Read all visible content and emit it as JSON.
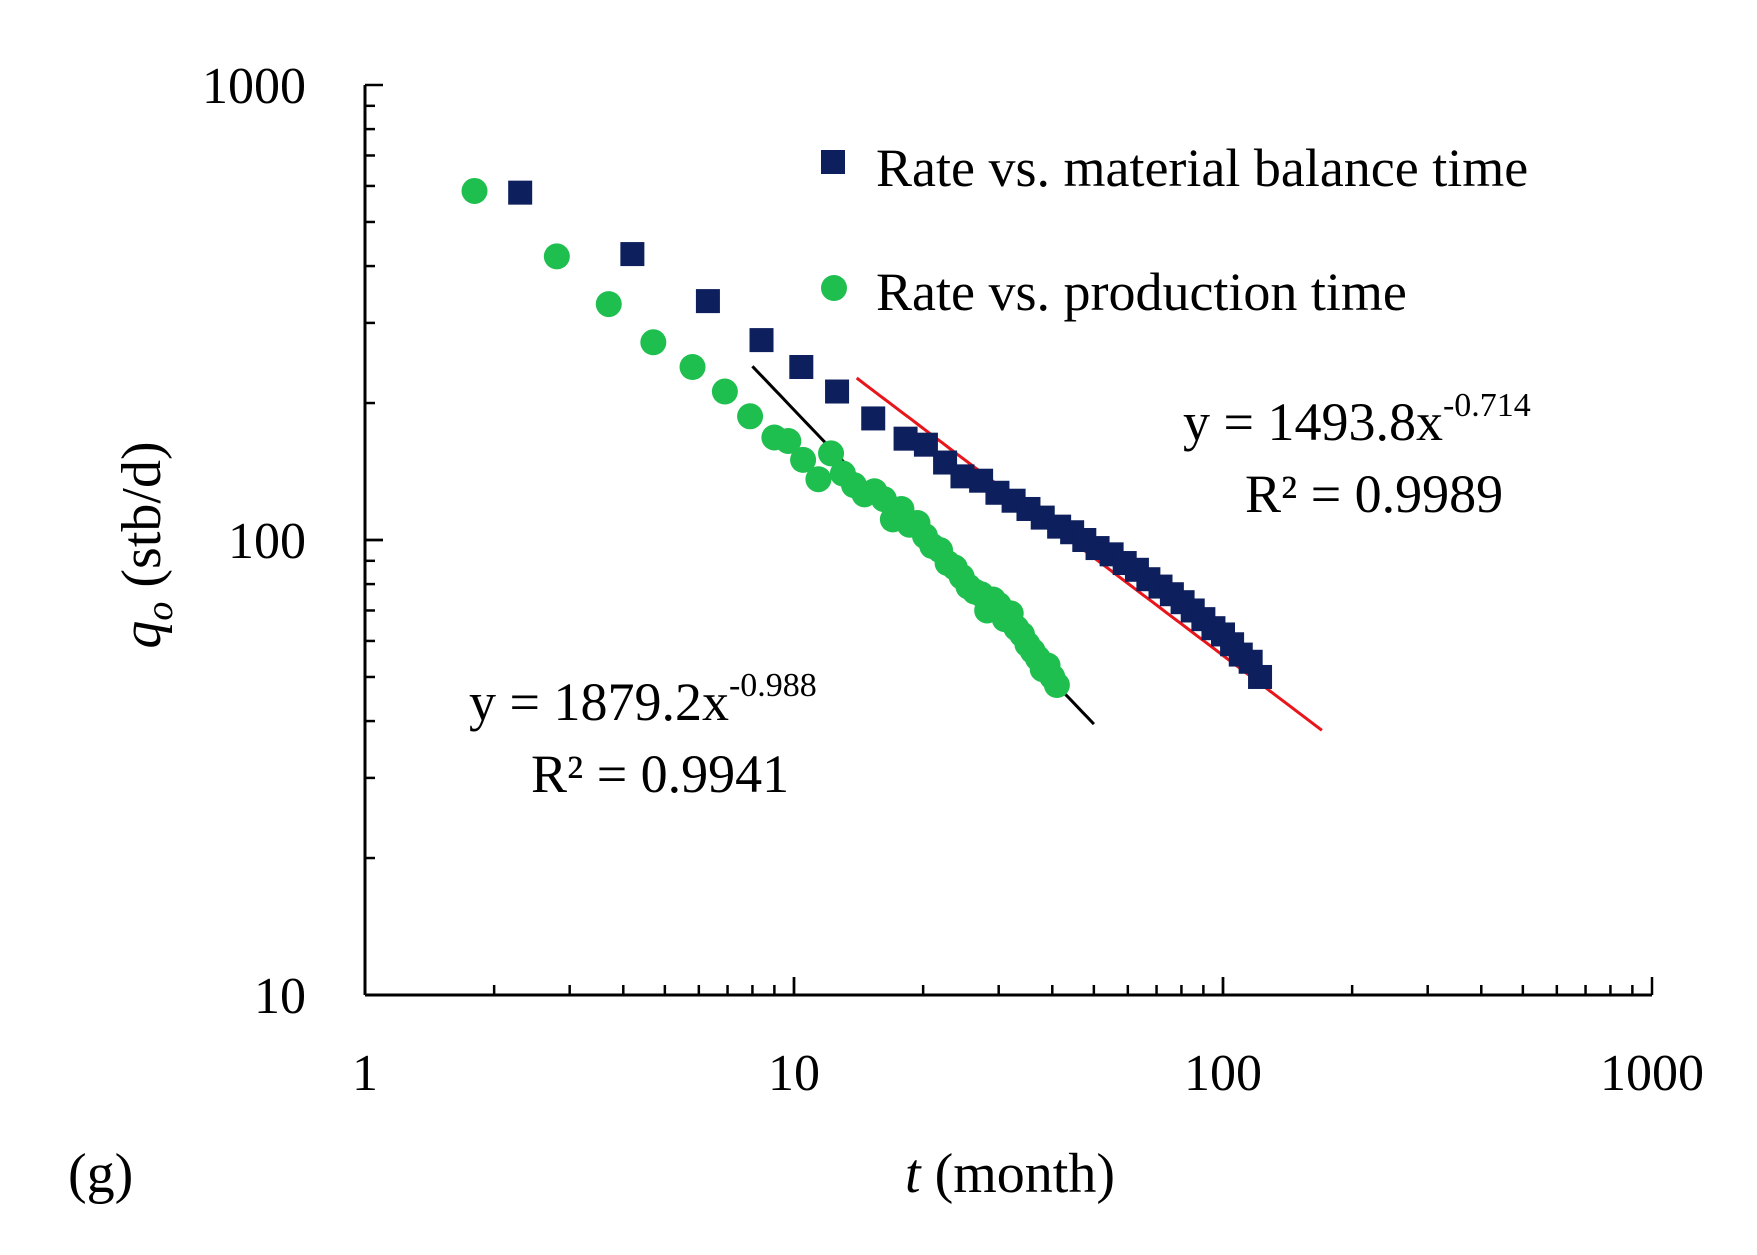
{
  "chart_data": {
    "type": "scatter",
    "panel_label": "(g)",
    "xscale": "log",
    "yscale": "log",
    "xlim": [
      1,
      1000
    ],
    "ylim": [
      10,
      1000
    ],
    "xticks": [
      1,
      10,
      100,
      1000
    ],
    "yticks": [
      10,
      100,
      1000
    ],
    "xtick_labels": [
      "1",
      "10",
      "100",
      "1000"
    ],
    "ytick_labels": [
      "10",
      "100",
      "1000"
    ],
    "xlabel": {
      "var": "t",
      "rest": " (month)"
    },
    "ylabel": {
      "var": "q",
      "sub": "o",
      "rest": " (stb/d)"
    },
    "legend_position": "top-right",
    "colors": {
      "mbt": "#0d1f5c",
      "prod": "#1ebf4e",
      "fit_mbt": "#e8151b",
      "fit_prod": "#000000",
      "axis": "#000000"
    },
    "series": [
      {
        "name": "Rate vs. material balance time",
        "marker": "square",
        "color": "#0d1f5c",
        "x": [
          2.3,
          4.2,
          6.3,
          8.4,
          10.4,
          12.6,
          15.3,
          18.2,
          20.3,
          22.5,
          24.7,
          27.3,
          29.8,
          32.5,
          35.2,
          38.0,
          41.5,
          44.5,
          47.5,
          51.0,
          55.0,
          59.0,
          63.0,
          67.0,
          71.5,
          76.0,
          80.5,
          85.0,
          90.0,
          95.0,
          100.0,
          105.0,
          110.0,
          116.0,
          122.0
        ],
        "y": [
          580,
          425,
          335,
          275,
          240,
          212,
          185,
          167,
          162,
          148,
          138,
          135,
          127,
          122,
          117,
          112,
          107,
          104,
          100,
          96,
          93,
          89,
          86,
          82,
          79,
          76,
          73,
          70,
          67,
          64,
          62,
          59,
          56,
          54,
          50
        ]
      },
      {
        "name": "Rate vs. production time",
        "marker": "circle",
        "color": "#1ebf4e",
        "x": [
          1.8,
          2.8,
          3.7,
          4.7,
          5.8,
          6.9,
          7.9,
          9.0,
          9.7,
          10.5,
          11.4,
          12.2,
          13.0,
          13.8,
          14.6,
          15.4,
          16.2,
          17.0,
          17.8,
          18.6,
          19.4,
          20.2,
          21.0,
          21.9,
          22.8,
          23.7,
          24.6,
          25.5,
          26.4,
          27.3,
          28.2,
          29.1,
          30.0,
          31.0,
          32.0,
          33.0,
          34.0,
          35.0,
          36.0,
          37.0,
          38.0,
          39.0,
          40.0,
          41.0
        ],
        "y": [
          585,
          420,
          330,
          272,
          240,
          212,
          187,
          168,
          165,
          150,
          136,
          155,
          140,
          132,
          126,
          128,
          123,
          111,
          117,
          108,
          109,
          102,
          97,
          95,
          89,
          87,
          83,
          79,
          77,
          76,
          70,
          74,
          72,
          67,
          69,
          64,
          62,
          59,
          57,
          55,
          52,
          53,
          50,
          48
        ]
      }
    ],
    "fits": [
      {
        "name": "fit-mbt",
        "color": "#e8151b",
        "coef": 1493.8,
        "exp": -0.714,
        "xrange": [
          14,
          170
        ],
        "equation": {
          "base": "y = 1493.8x",
          "sup": "-0.714"
        },
        "r2": "R² = 0.9989"
      },
      {
        "name": "fit-prod",
        "color": "#000000",
        "coef": 1879.2,
        "exp": -0.988,
        "xrange": [
          8,
          50
        ],
        "equation": {
          "base": "y = 1879.2x",
          "sup": "-0.988"
        },
        "r2": "R² = 0.9941"
      }
    ]
  }
}
